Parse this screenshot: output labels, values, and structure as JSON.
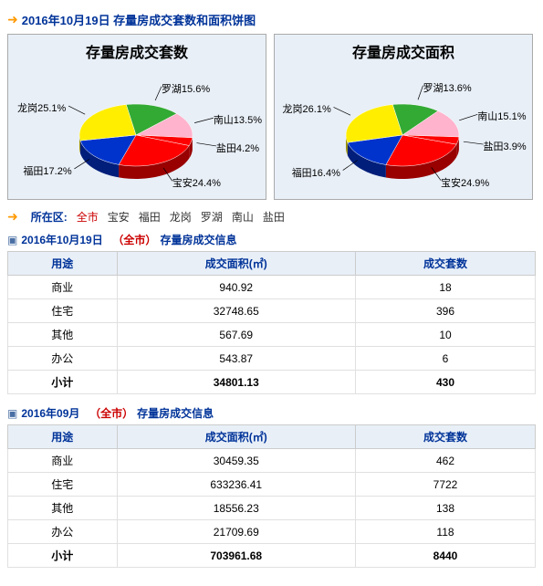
{
  "header": {
    "title": "2016年10月19日 存量房成交套数和面积饼图"
  },
  "chart1": {
    "type": "pie",
    "title": "存量房成交套数",
    "background_color": "#e8eff7",
    "border_color": "#aaaaaa",
    "slices": [
      {
        "name": "罗湖",
        "value": 15.6,
        "label": "罗湖15.6%",
        "color": "#33aa33"
      },
      {
        "name": "南山",
        "value": 13.5,
        "label": "南山13.5%",
        "color": "#ffb3cc"
      },
      {
        "name": "盐田",
        "value": 4.2,
        "label": "盐田4.2%",
        "color": "#ff0000"
      },
      {
        "name": "宝安",
        "value": 24.4,
        "label": "宝安24.4%",
        "color": "#ff0000"
      },
      {
        "name": "福田",
        "value": 17.2,
        "label": "福田17.2%",
        "color": "#0033cc"
      },
      {
        "name": "龙岗",
        "value": 25.1,
        "label": "龙岗25.1%",
        "color": "#ffee00"
      }
    ],
    "title_fontsize": 16,
    "label_fontsize": 11
  },
  "chart2": {
    "type": "pie",
    "title": "存量房成交面积",
    "background_color": "#e8eff7",
    "border_color": "#aaaaaa",
    "slices": [
      {
        "name": "罗湖",
        "value": 13.6,
        "label": "罗湖13.6%",
        "color": "#33aa33"
      },
      {
        "name": "南山",
        "value": 15.1,
        "label": "南山15.1%",
        "color": "#ffb3cc"
      },
      {
        "name": "盐田",
        "value": 3.9,
        "label": "盐田3.9%",
        "color": "#ff0000"
      },
      {
        "name": "宝安",
        "value": 24.9,
        "label": "宝安24.9%",
        "color": "#ff0000"
      },
      {
        "name": "福田",
        "value": 16.4,
        "label": "福田16.4%",
        "color": "#0033cc"
      },
      {
        "name": "龙岗",
        "value": 26.1,
        "label": "龙岗26.1%",
        "color": "#ffee00"
      }
    ],
    "title_fontsize": 16,
    "label_fontsize": 11
  },
  "districts": {
    "label": "所在区:",
    "active": "全市",
    "items": [
      "全市",
      "宝安",
      "福田",
      "龙岗",
      "罗湖",
      "南山",
      "盐田"
    ]
  },
  "table1": {
    "title_date": "2016年10月19日",
    "title_city": "（全市）",
    "title_suffix": "存量房成交信息",
    "columns": [
      "用途",
      "成交面积(㎡)",
      "成交套数"
    ],
    "rows": [
      [
        "商业",
        "940.92",
        "18"
      ],
      [
        "住宅",
        "32748.65",
        "396"
      ],
      [
        "其他",
        "567.69",
        "10"
      ],
      [
        "办公",
        "543.87",
        "6"
      ]
    ],
    "total": [
      "小计",
      "34801.13",
      "430"
    ],
    "header_bg": "#e8eff7",
    "header_color": "#003399"
  },
  "table2": {
    "title_date": "2016年09月",
    "title_city": "（全市）",
    "title_suffix": "存量房成交信息",
    "columns": [
      "用途",
      "成交面积(㎡)",
      "成交套数"
    ],
    "rows": [
      [
        "商业",
        "30459.35",
        "462"
      ],
      [
        "住宅",
        "633236.41",
        "7722"
      ],
      [
        "其他",
        "18556.23",
        "138"
      ],
      [
        "办公",
        "21709.69",
        "118"
      ]
    ],
    "total": [
      "小计",
      "703961.68",
      "8440"
    ],
    "header_bg": "#e8eff7",
    "header_color": "#003399"
  }
}
